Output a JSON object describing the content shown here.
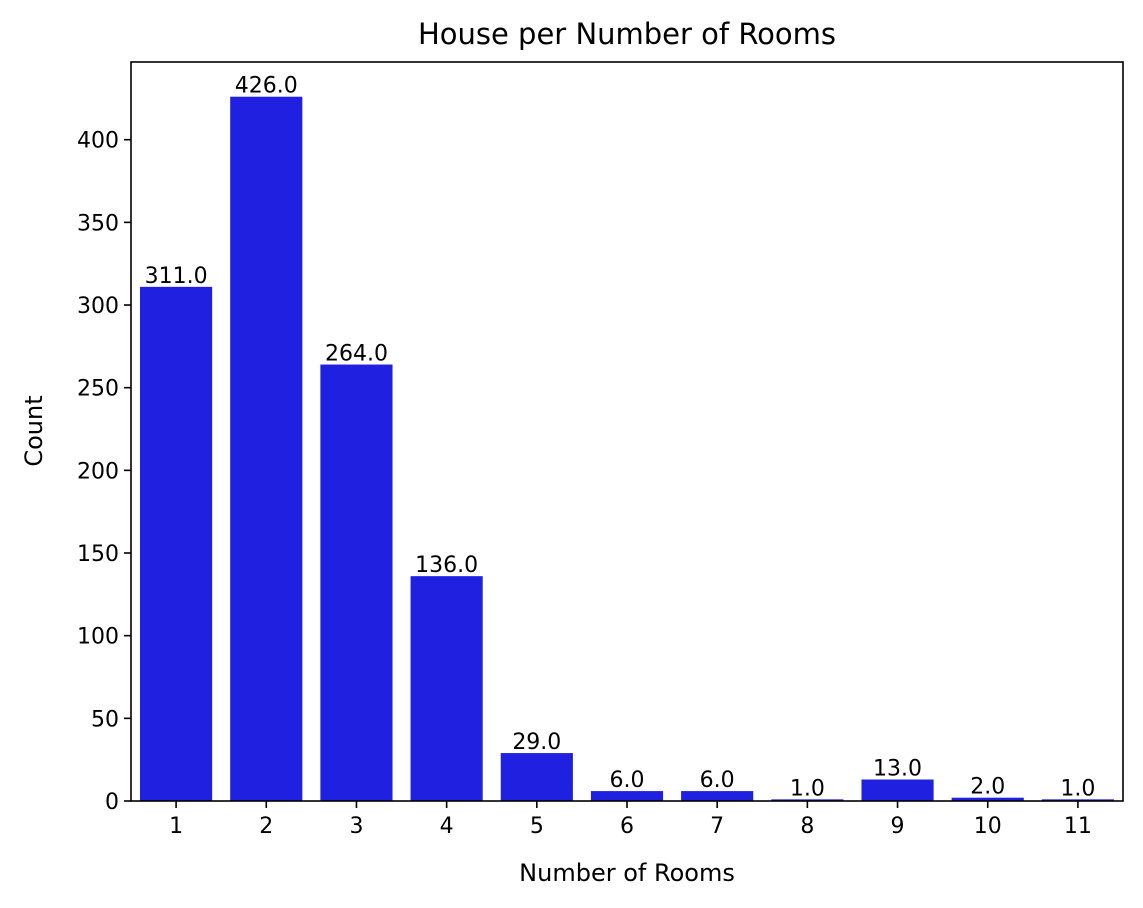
{
  "chart_data": {
    "type": "bar",
    "title": "House per Number of Rooms",
    "xlabel": "Number of Rooms",
    "ylabel": "Count",
    "categories": [
      "1",
      "2",
      "3",
      "4",
      "5",
      "6",
      "7",
      "8",
      "9",
      "10",
      "11"
    ],
    "values": [
      311,
      426,
      264,
      136,
      29,
      6,
      6,
      1,
      13,
      2,
      1
    ],
    "value_labels": [
      "311.0",
      "426.0",
      "264.0",
      "136.0",
      "29.0",
      "6.0",
      "6.0",
      "1.0",
      "13.0",
      "2.0",
      "1.0"
    ],
    "ylim": [
      0,
      447
    ],
    "yticks": [
      0,
      50,
      100,
      150,
      200,
      250,
      300,
      350,
      400
    ],
    "grid": false,
    "bar_color": "#2020e0"
  }
}
